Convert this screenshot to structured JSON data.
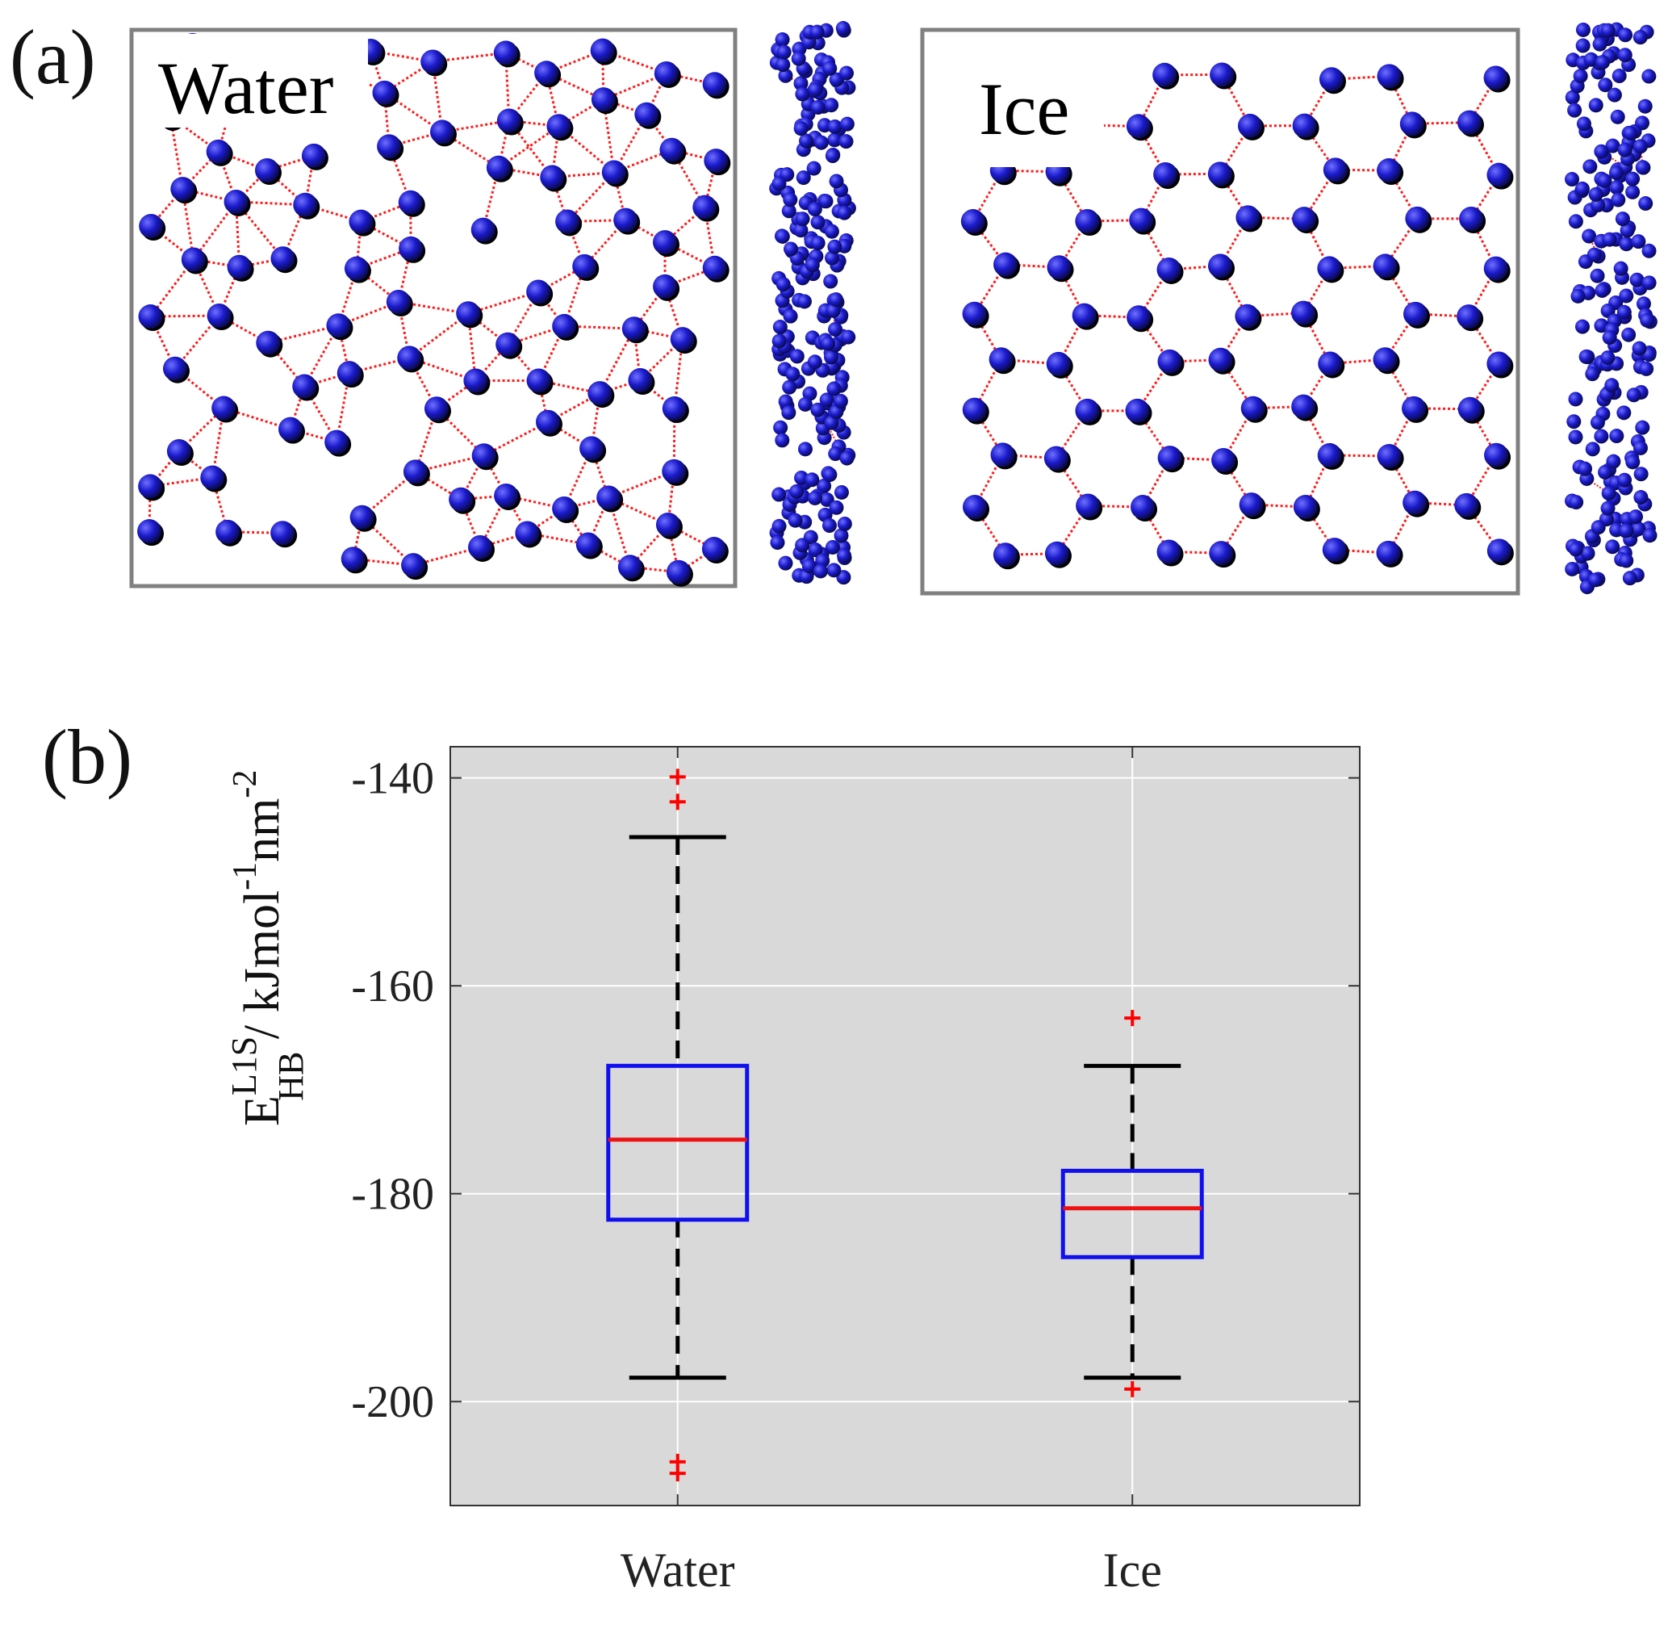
{
  "figure": {
    "panel_a_label": "(a)",
    "panel_b_label": "(b)"
  },
  "panel_a": {
    "snapshots": [
      {
        "title": "Water",
        "structure": "disordered"
      },
      {
        "title": "Ice",
        "structure": "hexagonal"
      }
    ],
    "colors": {
      "molecule": "#1a1acc",
      "hbond": "#ff1a1a",
      "frame": "#808080"
    }
  },
  "chart_data": {
    "type": "box",
    "categories": [
      "Water",
      "Ice"
    ],
    "ylabel": {
      "symbol": "E",
      "superscript": "L1S",
      "subscript": "HB",
      "units_prefix": " / kJmol",
      "units_exp1": "-1",
      "units_mid": "nm",
      "units_exp2": "-2"
    },
    "ylim": [
      -210,
      -137
    ],
    "yticks": [
      -200,
      -180,
      -160,
      -140
    ],
    "ytick_labels": [
      "-200",
      "-180",
      "-160",
      "-140"
    ],
    "grid": true,
    "boxes": [
      {
        "name": "Water",
        "whisker_low": -197.7,
        "q1": -182.5,
        "median": -174.8,
        "q3": -167.7,
        "whisker_high": -145.7,
        "outliers": [
          -139.9,
          -142.3,
          -205.8,
          -206.9
        ]
      },
      {
        "name": "Ice",
        "whisker_low": -197.7,
        "q1": -186.1,
        "median": -181.4,
        "q3": -177.8,
        "whisker_high": -167.7,
        "outliers": [
          -163.1,
          -198.8
        ]
      }
    ],
    "colors": {
      "box": "#1010ee",
      "median": "#ee1111",
      "whisker": "#000000",
      "outlier": "#ff0000",
      "background": "#d9d9d9",
      "grid": "#ffffff"
    }
  }
}
